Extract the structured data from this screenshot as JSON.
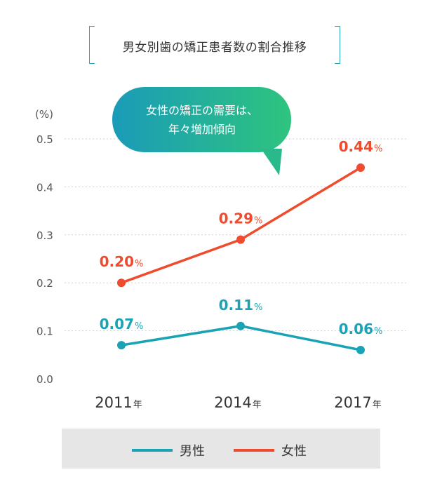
{
  "title": "男女別歯の矯正患者数の割合推移",
  "chart_data": {
    "type": "line",
    "categories": [
      "2011",
      "2014",
      "2017"
    ],
    "category_suffix": "年",
    "ylabel": "(%)",
    "ylim": [
      0,
      0.5
    ],
    "yticks": [
      "0.0",
      "0.1",
      "0.2",
      "0.3",
      "0.4",
      "0.5"
    ],
    "grid": true,
    "series": [
      {
        "name": "男性",
        "color": "#1aa3b5",
        "values": [
          0.07,
          0.11,
          0.06
        ],
        "labels": [
          "0.07",
          "0.11",
          "0.06"
        ]
      },
      {
        "name": "女性",
        "color": "#ef4b2e",
        "values": [
          0.2,
          0.29,
          0.44
        ],
        "labels": [
          "0.20",
          "0.29",
          "0.44"
        ]
      }
    ],
    "label_suffix": "%",
    "annotation": {
      "line1": "女性の矯正の需要は、",
      "line2": "年々増加傾向"
    },
    "legend_position": "bottom"
  }
}
